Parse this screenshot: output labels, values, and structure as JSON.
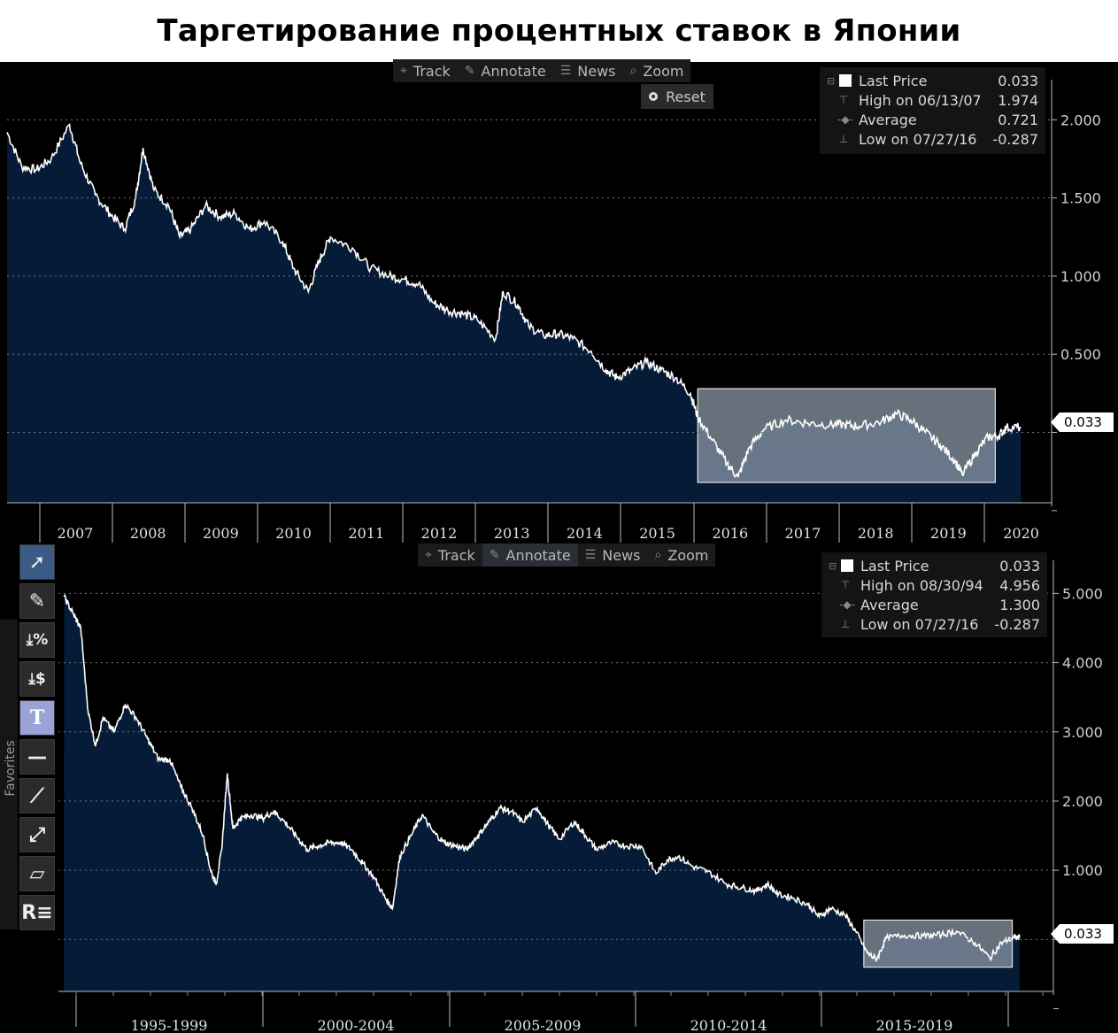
{
  "title": "Таргетирование процентных ставок в Японии",
  "colors": {
    "area_fill": "#061b37",
    "line": "#ffffff",
    "highlight": "#8f9caa"
  },
  "top_toolbar": [
    {
      "icon": "crosshair-icon",
      "label": "Track"
    },
    {
      "icon": "pen-icon",
      "label": "Annotate"
    },
    {
      "icon": "news-icon",
      "label": "News"
    },
    {
      "icon": "magnifier-icon",
      "label": "Zoom"
    }
  ],
  "reset_label": "Reset",
  "bottom_toolbar": [
    {
      "icon": "crosshair-icon",
      "label": "Track"
    },
    {
      "icon": "pen-icon",
      "label": "Annotate"
    },
    {
      "icon": "news-icon",
      "label": "News"
    },
    {
      "icon": "magnifier-icon",
      "label": "Zoom"
    }
  ],
  "favorites_label": "Favorites",
  "tools": [
    "cursor-arrow-icon",
    "pen-tool-icon",
    "percent-marker-icon",
    "price-marker-icon",
    "text-tool-icon",
    "horizontal-line-icon",
    "trend-line-icon",
    "ray-line-icon",
    "channel-icon",
    "regression-icon"
  ],
  "tool_glyphs": {
    "percent": "%",
    "dollar": "$",
    "text": "T",
    "regression": "R"
  },
  "legend_top": {
    "last_label": "Last Price",
    "last_value": "0.033",
    "high_label": "High on 06/13/07",
    "high_value": "1.974",
    "avg_label": "Average",
    "avg_value": "0.721",
    "low_label": "Low on 07/27/16",
    "low_value": "-0.287"
  },
  "legend_bottom": {
    "last_label": "Last Price",
    "last_value": "0.033",
    "high_label": "High on 08/30/94",
    "high_value": "4.956",
    "avg_label": "Average",
    "avg_value": "1.300",
    "low_label": "Low on 07/27/16",
    "low_value": "-0.287"
  },
  "chart_data": [
    {
      "type": "area",
      "series": [
        {
          "values": [
            [
              2006.6,
              1.92
            ],
            [
              2006.8,
              1.7
            ],
            [
              2007.0,
              1.68
            ],
            [
              2007.2,
              1.75
            ],
            [
              2007.45,
              1.97
            ],
            [
              2007.6,
              1.72
            ],
            [
              2007.8,
              1.52
            ],
            [
              2008.0,
              1.4
            ],
            [
              2008.2,
              1.3
            ],
            [
              2008.35,
              1.5
            ],
            [
              2008.45,
              1.82
            ],
            [
              2008.6,
              1.55
            ],
            [
              2008.8,
              1.45
            ],
            [
              2008.95,
              1.25
            ],
            [
              2009.1,
              1.3
            ],
            [
              2009.3,
              1.45
            ],
            [
              2009.5,
              1.38
            ],
            [
              2009.7,
              1.4
            ],
            [
              2009.9,
              1.3
            ],
            [
              2010.1,
              1.35
            ],
            [
              2010.35,
              1.22
            ],
            [
              2010.5,
              1.05
            ],
            [
              2010.7,
              0.9
            ],
            [
              2010.85,
              1.1
            ],
            [
              2011.0,
              1.25
            ],
            [
              2011.3,
              1.18
            ],
            [
              2011.55,
              1.05
            ],
            [
              2011.8,
              1.0
            ],
            [
              2012.0,
              0.98
            ],
            [
              2012.2,
              0.95
            ],
            [
              2012.4,
              0.83
            ],
            [
              2012.6,
              0.78
            ],
            [
              2012.8,
              0.76
            ],
            [
              2013.0,
              0.72
            ],
            [
              2013.25,
              0.6
            ],
            [
              2013.35,
              0.9
            ],
            [
              2013.55,
              0.82
            ],
            [
              2013.7,
              0.68
            ],
            [
              2013.9,
              0.62
            ],
            [
              2014.1,
              0.63
            ],
            [
              2014.3,
              0.6
            ],
            [
              2014.55,
              0.52
            ],
            [
              2014.75,
              0.4
            ],
            [
              2014.9,
              0.35
            ],
            [
              2015.1,
              0.4
            ],
            [
              2015.3,
              0.45
            ],
            [
              2015.5,
              0.4
            ],
            [
              2015.7,
              0.35
            ],
            [
              2015.9,
              0.25
            ],
            [
              2016.0,
              0.1
            ],
            [
              2016.2,
              -0.05
            ],
            [
              2016.4,
              -0.2
            ],
            [
              2016.55,
              -0.287
            ],
            [
              2016.7,
              -0.1
            ],
            [
              2016.9,
              0.02
            ],
            [
              2017.2,
              0.08
            ],
            [
              2017.5,
              0.06
            ],
            [
              2017.8,
              0.05
            ],
            [
              2018.0,
              0.05
            ],
            [
              2018.2,
              0.04
            ],
            [
              2018.5,
              0.07
            ],
            [
              2018.7,
              0.12
            ],
            [
              2018.9,
              0.08
            ],
            [
              2019.1,
              0.0
            ],
            [
              2019.3,
              -0.08
            ],
            [
              2019.5,
              -0.18
            ],
            [
              2019.6,
              -0.27
            ],
            [
              2019.8,
              -0.12
            ],
            [
              2019.95,
              -0.03
            ],
            [
              2020.1,
              -0.02
            ],
            [
              2020.2,
              0.03
            ],
            [
              2020.4,
              0.033
            ]
          ]
        }
      ],
      "x_tick_labels": [
        "2007",
        "2008",
        "2009",
        "2010",
        "2011",
        "2012",
        "2013",
        "2014",
        "2015",
        "2016",
        "2017",
        "2018",
        "2019",
        "2020"
      ],
      "y_ticks": [
        -0.5,
        0.0,
        0.5,
        1.0,
        1.5,
        2.0
      ],
      "y_tick_labels": [
        "",
        "",
        "0.500",
        "1.000",
        "1.500",
        "2.000"
      ],
      "ylim": [
        -0.45,
        2.2
      ],
      "xlim": [
        2006.6,
        2020.6
      ],
      "highlight": {
        "x": [
          2016.0,
          2020.05
        ],
        "y": [
          -0.32,
          0.28
        ]
      },
      "last_value_label": "0.033"
    },
    {
      "type": "area",
      "series": [
        {
          "values": [
            [
              1994.65,
              4.956
            ],
            [
              1994.9,
              4.7
            ],
            [
              1995.1,
              4.5
            ],
            [
              1995.3,
              3.3
            ],
            [
              1995.5,
              2.8
            ],
            [
              1995.7,
              3.2
            ],
            [
              1996.0,
              3.0
            ],
            [
              1996.3,
              3.4
            ],
            [
              1996.6,
              3.2
            ],
            [
              1996.9,
              2.9
            ],
            [
              1997.2,
              2.6
            ],
            [
              1997.5,
              2.6
            ],
            [
              1997.8,
              2.2
            ],
            [
              1998.1,
              1.9
            ],
            [
              1998.4,
              1.5
            ],
            [
              1998.6,
              1.0
            ],
            [
              1998.75,
              0.8
            ],
            [
              1998.9,
              1.3
            ],
            [
              1999.05,
              2.4
            ],
            [
              1999.2,
              1.6
            ],
            [
              1999.4,
              1.75
            ],
            [
              1999.7,
              1.8
            ],
            [
              2000.0,
              1.75
            ],
            [
              2000.3,
              1.85
            ],
            [
              2000.6,
              1.7
            ],
            [
              2000.9,
              1.5
            ],
            [
              2001.2,
              1.3
            ],
            [
              2001.5,
              1.35
            ],
            [
              2001.8,
              1.4
            ],
            [
              2002.1,
              1.4
            ],
            [
              2002.4,
              1.3
            ],
            [
              2002.7,
              1.1
            ],
            [
              2003.0,
              0.9
            ],
            [
              2003.3,
              0.6
            ],
            [
              2003.5,
              0.45
            ],
            [
              2003.7,
              1.2
            ],
            [
              2004.0,
              1.5
            ],
            [
              2004.3,
              1.8
            ],
            [
              2004.6,
              1.55
            ],
            [
              2004.9,
              1.4
            ],
            [
              2005.2,
              1.35
            ],
            [
              2005.5,
              1.3
            ],
            [
              2005.8,
              1.5
            ],
            [
              2006.1,
              1.7
            ],
            [
              2006.4,
              1.9
            ],
            [
              2006.7,
              1.85
            ],
            [
              2007.0,
              1.7
            ],
            [
              2007.4,
              1.9
            ],
            [
              2007.7,
              1.65
            ],
            [
              2008.0,
              1.45
            ],
            [
              2008.4,
              1.7
            ],
            [
              2008.7,
              1.5
            ],
            [
              2009.0,
              1.3
            ],
            [
              2009.4,
              1.4
            ],
            [
              2009.8,
              1.35
            ],
            [
              2010.2,
              1.35
            ],
            [
              2010.6,
              0.95
            ],
            [
              2010.9,
              1.15
            ],
            [
              2011.2,
              1.2
            ],
            [
              2011.6,
              1.05
            ],
            [
              2012.0,
              0.98
            ],
            [
              2012.5,
              0.8
            ],
            [
              2012.9,
              0.75
            ],
            [
              2013.3,
              0.7
            ],
            [
              2013.6,
              0.8
            ],
            [
              2013.9,
              0.65
            ],
            [
              2014.3,
              0.6
            ],
            [
              2014.7,
              0.5
            ],
            [
              2015.0,
              0.33
            ],
            [
              2015.3,
              0.45
            ],
            [
              2015.7,
              0.35
            ],
            [
              2016.0,
              0.1
            ],
            [
              2016.3,
              -0.2
            ],
            [
              2016.55,
              -0.287
            ],
            [
              2016.8,
              0.02
            ],
            [
              2017.3,
              0.06
            ],
            [
              2017.8,
              0.05
            ],
            [
              2018.3,
              0.07
            ],
            [
              2018.7,
              0.12
            ],
            [
              2019.2,
              -0.05
            ],
            [
              2019.6,
              -0.27
            ],
            [
              2019.9,
              -0.05
            ],
            [
              2020.2,
              0.02
            ],
            [
              2020.4,
              0.033
            ]
          ]
        }
      ],
      "x_tick_labels": [
        "1995-1999",
        "2000-2004",
        "2005-2009",
        "2010-2014",
        "2015-2019"
      ],
      "y_ticks": [
        -1.0,
        0.0,
        1.0,
        2.0,
        3.0,
        4.0,
        5.0
      ],
      "y_tick_labels": [
        "",
        "",
        "1.000",
        "2.000",
        "3.000",
        "4.000",
        "5.000"
      ],
      "ylim": [
        -0.75,
        5.35
      ],
      "xlim": [
        1994.5,
        2020.95
      ],
      "highlight": {
        "x": [
          2016.2,
          2020.2
        ],
        "y": [
          -0.4,
          0.28
        ]
      },
      "last_value_label": "0.033"
    }
  ]
}
